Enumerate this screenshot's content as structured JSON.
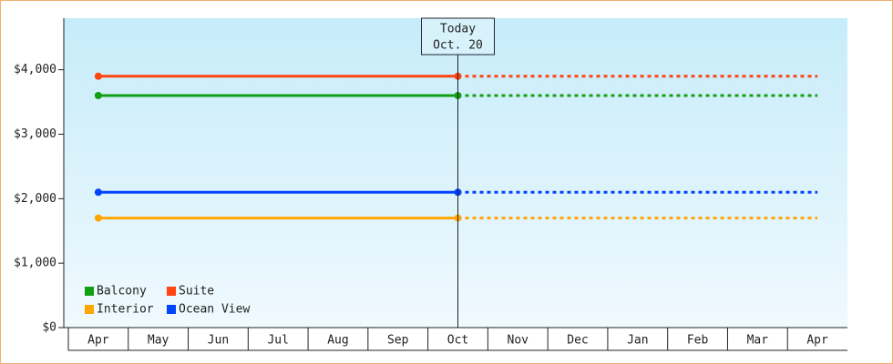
{
  "chart_data": {
    "type": "line",
    "categories": [
      "Apr",
      "May",
      "Jun",
      "Jul",
      "Aug",
      "Sep",
      "Oct",
      "Nov",
      "Dec",
      "Jan",
      "Feb",
      "Mar",
      "Apr"
    ],
    "series": [
      {
        "name": "Balcony",
        "color": "#11a011",
        "values": [
          3600,
          3600,
          3600,
          3600,
          3600,
          3600,
          3600,
          3600,
          3600,
          3600,
          3600,
          3600,
          3600
        ]
      },
      {
        "name": "Suite",
        "color": "#ff4411",
        "values": [
          3900,
          3900,
          3900,
          3900,
          3900,
          3900,
          3900,
          3900,
          3900,
          3900,
          3900,
          3900,
          3900
        ]
      },
      {
        "name": "Interior",
        "color": "#ffa500",
        "values": [
          1700,
          1700,
          1700,
          1700,
          1700,
          1700,
          1700,
          1700,
          1700,
          1700,
          1700,
          1700,
          1700
        ]
      },
      {
        "name": "Ocean View",
        "color": "#0044ff",
        "values": [
          2100,
          2100,
          2100,
          2100,
          2100,
          2100,
          2100,
          2100,
          2100,
          2100,
          2100,
          2100,
          2100
        ]
      }
    ],
    "ylim": [
      0,
      4800
    ],
    "yticks": [
      {
        "value": 0,
        "label": "$0"
      },
      {
        "value": 1000,
        "label": "$1,000"
      },
      {
        "value": 2000,
        "label": "$2,000"
      },
      {
        "value": 3000,
        "label": "$3,000"
      },
      {
        "value": 4000,
        "label": "$4,000"
      }
    ],
    "annotation": {
      "label": "Today",
      "date": "Oct. 20"
    }
  }
}
